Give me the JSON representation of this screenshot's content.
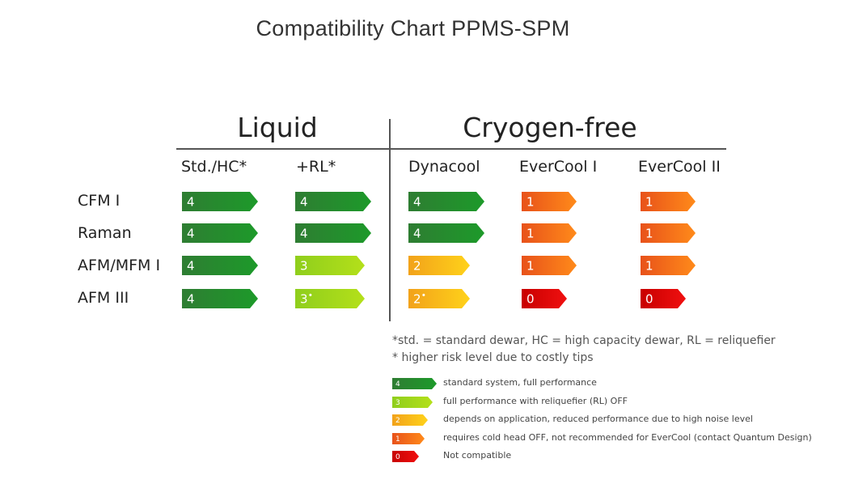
{
  "title": "Compatibility Chart PPMS-SPM",
  "groups": {
    "liquid": "Liquid",
    "cryogen_free": "Cryogen-free"
  },
  "columns": [
    "Std./HC*",
    "+RL*",
    "Dynacool",
    "EverCool I",
    "EverCool II"
  ],
  "rows": [
    "CFM I",
    "Raman",
    "AFM/MFM I",
    "AFM III"
  ],
  "level_colors": {
    "4": [
      "#2e7d32",
      "#1d9a2a"
    ],
    "3": [
      "#8fce1c",
      "#b4e01a"
    ],
    "2": [
      "#f2a21a",
      "#ffd21a"
    ],
    "1": [
      "#e8521a",
      "#ff8a1a"
    ],
    "0": [
      "#c80000",
      "#f01010"
    ]
  },
  "chart_data": {
    "type": "table",
    "columns": [
      "Std./HC*",
      "+RL*",
      "Dynacool",
      "EverCool I",
      "EverCool II"
    ],
    "rows": [
      "CFM I",
      "Raman",
      "AFM/MFM I",
      "AFM III"
    ],
    "cells": [
      [
        "4",
        "4",
        "4",
        "1",
        "1"
      ],
      [
        "4",
        "4",
        "4",
        "1",
        "1"
      ],
      [
        "4",
        "3",
        "2",
        "1",
        "1"
      ],
      [
        "4",
        "3*",
        "2*",
        "0",
        "0"
      ]
    ]
  },
  "notes": {
    "footnote1": "*std. = standard dewar, HC = high capacity dewar, RL = reliquefier",
    "footnote2": "* higher risk level due to costly tips"
  },
  "legend": [
    {
      "level": "4",
      "text": "standard system, full performance"
    },
    {
      "level": "3",
      "text": "full performance with reliquefier (RL) OFF"
    },
    {
      "level": "2",
      "text": "depends on application, reduced performance due to high noise level"
    },
    {
      "level": "1",
      "text": "requires cold head OFF, not recommended for EverCool (contact Quantum Design)"
    },
    {
      "level": "0",
      "text": "Not compatible"
    }
  ]
}
